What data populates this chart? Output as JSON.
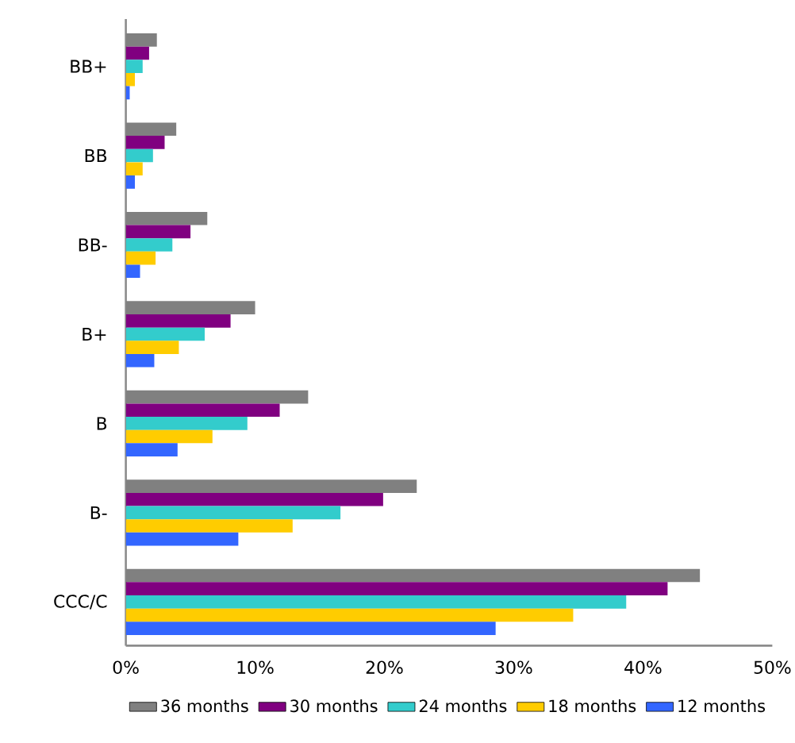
{
  "chart_data": {
    "type": "bar",
    "orientation": "horizontal",
    "categories": [
      "BB+",
      "BB",
      "BB-",
      "B+",
      "B",
      "B-",
      "CCC/C"
    ],
    "series": [
      {
        "name": "36 months",
        "color": "#808080",
        "values": [
          2.4,
          3.9,
          6.3,
          10.0,
          14.1,
          22.5,
          44.4
        ]
      },
      {
        "name": "30 months",
        "color": "#800080",
        "values": [
          1.8,
          3.0,
          5.0,
          8.1,
          11.9,
          19.9,
          41.9
        ]
      },
      {
        "name": "24 months",
        "color": "#33cccc",
        "values": [
          1.3,
          2.1,
          3.6,
          6.1,
          9.4,
          16.6,
          38.7
        ]
      },
      {
        "name": "18 months",
        "color": "#ffcc00",
        "values": [
          0.7,
          1.3,
          2.3,
          4.1,
          6.7,
          12.9,
          34.6
        ]
      },
      {
        "name": "12 months",
        "color": "#3366ff",
        "values": [
          0.3,
          0.7,
          1.1,
          2.2,
          4.0,
          8.7,
          28.6
        ]
      }
    ],
    "xlim": [
      0,
      50
    ],
    "xticks": [
      {
        "value": 0,
        "label": "0%"
      },
      {
        "value": 10,
        "label": "10%"
      },
      {
        "value": 20,
        "label": "20%"
      },
      {
        "value": 30,
        "label": "30%"
      },
      {
        "value": 40,
        "label": "40%"
      },
      {
        "value": 50,
        "label": "50%"
      }
    ],
    "legend": "bottom",
    "grid": false
  }
}
